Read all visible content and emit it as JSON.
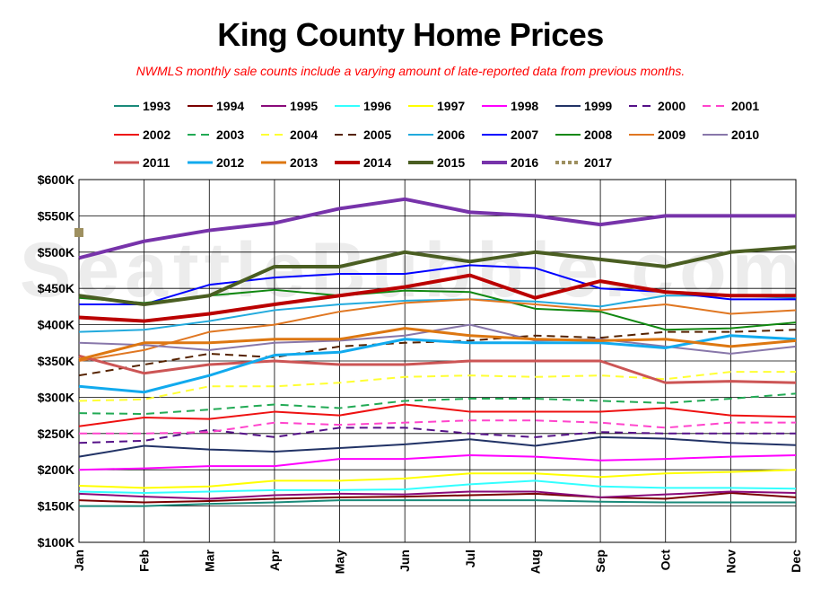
{
  "chart_data": {
    "type": "line",
    "title": "King County Home Prices",
    "subtitle": "NWMLS monthly sale counts include a varying amount of late-reported  data from previous months.",
    "watermark": "SeattleBubble.com",
    "categories": [
      "Jan",
      "Feb",
      "Mar",
      "Apr",
      "May",
      "Jun",
      "Jul",
      "Aug",
      "Sep",
      "Oct",
      "Nov",
      "Dec"
    ],
    "ylim": [
      100000,
      600000
    ],
    "yticks": [
      {
        "value": 100000,
        "label": "$100K"
      },
      {
        "value": 150000,
        "label": "$150K"
      },
      {
        "value": 200000,
        "label": "$200K"
      },
      {
        "value": 250000,
        "label": "$250K"
      },
      {
        "value": 300000,
        "label": "$300K"
      },
      {
        "value": 350000,
        "label": "$350K"
      },
      {
        "value": 400000,
        "label": "$400K"
      },
      {
        "value": 450000,
        "label": "$450K"
      },
      {
        "value": 500000,
        "label": "$500K"
      },
      {
        "value": 550000,
        "label": "$550K"
      },
      {
        "value": 600000,
        "label": "$600K"
      }
    ],
    "grid": true,
    "legend_position": "top",
    "series": [
      {
        "name": "1993",
        "color": "#1a8a7a",
        "dash": "solid",
        "width": 2,
        "values": [
          150000,
          150000,
          153000,
          155000,
          158000,
          158000,
          158000,
          158000,
          156000,
          155000,
          155000,
          155000
        ]
      },
      {
        "name": "1994",
        "color": "#7a0000",
        "dash": "solid",
        "width": 2,
        "values": [
          158000,
          155000,
          157000,
          160000,
          162000,
          163000,
          165000,
          167000,
          162000,
          160000,
          168000,
          162000
        ]
      },
      {
        "name": "1995",
        "color": "#8a0a7a",
        "dash": "solid",
        "width": 2,
        "values": [
          167000,
          163000,
          160000,
          165000,
          167000,
          166000,
          170000,
          170000,
          162000,
          166000,
          170000,
          168000
        ]
      },
      {
        "name": "1996",
        "color": "#33ffff",
        "dash": "solid",
        "width": 2,
        "values": [
          170000,
          168000,
          170000,
          172000,
          172000,
          173000,
          180000,
          185000,
          177000,
          175000,
          175000,
          174000
        ]
      },
      {
        "name": "1997",
        "color": "#ffff00",
        "dash": "solid",
        "width": 2,
        "values": [
          178000,
          175000,
          177000,
          185000,
          185000,
          188000,
          195000,
          195000,
          190000,
          195000,
          197000,
          200000
        ]
      },
      {
        "name": "1998",
        "color": "#ff00ff",
        "dash": "solid",
        "width": 2,
        "values": [
          200000,
          202000,
          205000,
          205000,
          215000,
          215000,
          220000,
          218000,
          213000,
          215000,
          218000,
          220000
        ]
      },
      {
        "name": "1999",
        "color": "#223366",
        "dash": "solid",
        "width": 2,
        "values": [
          218000,
          233000,
          228000,
          225000,
          230000,
          235000,
          242000,
          233000,
          245000,
          243000,
          237000,
          234000
        ]
      },
      {
        "name": "2000",
        "color": "#551188",
        "dash": "dash",
        "width": 2,
        "values": [
          237000,
          240000,
          255000,
          245000,
          258000,
          258000,
          250000,
          245000,
          252000,
          250000,
          250000,
          250000
        ]
      },
      {
        "name": "2001",
        "color": "#ff44cc",
        "dash": "dash",
        "width": 2,
        "values": [
          250000,
          250000,
          252000,
          265000,
          262000,
          265000,
          268000,
          268000,
          265000,
          258000,
          265000,
          265000
        ]
      },
      {
        "name": "2002",
        "color": "#ee1111",
        "dash": "solid",
        "width": 2,
        "values": [
          260000,
          272000,
          270000,
          280000,
          275000,
          290000,
          280000,
          280000,
          280000,
          285000,
          275000,
          273000
        ]
      },
      {
        "name": "2003",
        "color": "#22aa55",
        "dash": "dash",
        "width": 2,
        "values": [
          278000,
          277000,
          283000,
          290000,
          285000,
          295000,
          298000,
          298000,
          295000,
          292000,
          298000,
          305000
        ]
      },
      {
        "name": "2004",
        "color": "#ffff33",
        "dash": "dash",
        "width": 2,
        "values": [
          295000,
          297000,
          315000,
          315000,
          320000,
          328000,
          330000,
          328000,
          330000,
          325000,
          335000,
          335000
        ]
      },
      {
        "name": "2005",
        "color": "#552200",
        "dash": "dash",
        "width": 2,
        "values": [
          330000,
          345000,
          360000,
          355000,
          370000,
          375000,
          378000,
          385000,
          382000,
          390000,
          390000,
          393000
        ]
      },
      {
        "name": "2006",
        "color": "#22aadd",
        "dash": "solid",
        "width": 2,
        "values": [
          390000,
          393000,
          405000,
          420000,
          428000,
          433000,
          435000,
          432000,
          425000,
          440000,
          440000,
          437000
        ]
      },
      {
        "name": "2007",
        "color": "#0000ff",
        "dash": "solid",
        "width": 2,
        "values": [
          428000,
          428000,
          455000,
          465000,
          470000,
          470000,
          482000,
          478000,
          450000,
          445000,
          435000,
          435000
        ]
      },
      {
        "name": "2008",
        "color": "#118811",
        "dash": "solid",
        "width": 2,
        "values": [
          437000,
          430000,
          440000,
          448000,
          440000,
          447000,
          445000,
          422000,
          418000,
          393000,
          395000,
          403000
        ]
      },
      {
        "name": "2009",
        "color": "#e07722",
        "dash": "solid",
        "width": 2,
        "values": [
          350000,
          365000,
          390000,
          400000,
          418000,
          430000,
          435000,
          428000,
          420000,
          428000,
          415000,
          420000
        ]
      },
      {
        "name": "2010",
        "color": "#8877aa",
        "dash": "solid",
        "width": 2,
        "values": [
          375000,
          372000,
          365000,
          375000,
          378000,
          385000,
          400000,
          378000,
          380000,
          370000,
          360000,
          370000
        ]
      },
      {
        "name": "2011",
        "color": "#cc5555",
        "dash": "solid",
        "width": 3,
        "values": [
          357000,
          333000,
          345000,
          350000,
          345000,
          345000,
          350000,
          350000,
          350000,
          320000,
          322000,
          320000
        ]
      },
      {
        "name": "2012",
        "color": "#11aaee",
        "dash": "solid",
        "width": 3,
        "values": [
          315000,
          307000,
          330000,
          358000,
          362000,
          380000,
          375000,
          375000,
          375000,
          368000,
          385000,
          380000
        ]
      },
      {
        "name": "2013",
        "color": "#dd7711",
        "dash": "solid",
        "width": 3,
        "values": [
          352000,
          375000,
          375000,
          380000,
          380000,
          395000,
          385000,
          380000,
          378000,
          380000,
          370000,
          378000
        ]
      },
      {
        "name": "2014",
        "color": "#bb0000",
        "dash": "solid",
        "width": 4,
        "values": [
          410000,
          405000,
          415000,
          428000,
          440000,
          452000,
          468000,
          437000,
          460000,
          445000,
          440000,
          440000
        ]
      },
      {
        "name": "2015",
        "color": "#4a5e22",
        "dash": "solid",
        "width": 4,
        "values": [
          440000,
          428000,
          440000,
          480000,
          480000,
          500000,
          487000,
          500000,
          490000,
          480000,
          500000,
          507000
        ]
      },
      {
        "name": "2016",
        "color": "#7733aa",
        "dash": "solid",
        "width": 4,
        "values": [
          492000,
          515000,
          530000,
          540000,
          560000,
          573000,
          555000,
          550000,
          538000,
          550000,
          550000,
          550000
        ]
      },
      {
        "name": "2017",
        "color": "#9e9060",
        "dash": "dot",
        "width": 4,
        "values": [
          527000,
          null,
          null,
          null,
          null,
          null,
          null,
          null,
          null,
          null,
          null,
          null
        ]
      }
    ]
  }
}
